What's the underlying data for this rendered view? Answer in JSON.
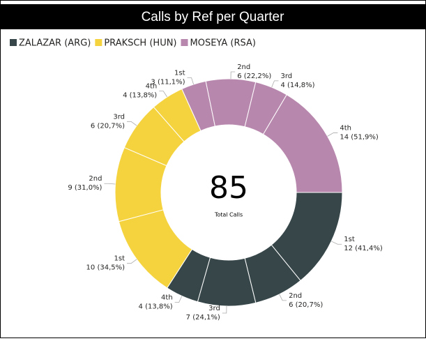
{
  "chart_data": {
    "type": "donut",
    "title": "Calls by Ref per Quarter",
    "total": 85,
    "total_label": "Total Calls",
    "series": [
      {
        "name": "ZALAZAR (ARG)",
        "color": "#374649",
        "categories": [
          "1st",
          "2nd",
          "3rd",
          "4th"
        ],
        "values": [
          12,
          6,
          7,
          4
        ],
        "value_labels": [
          "12 (41,4%)",
          "6 (20,7%)",
          "7 (24,1%)",
          "4 (13,8%)"
        ]
      },
      {
        "name": "PRAKSCH (HUN)",
        "color": "#F5D33F",
        "categories": [
          "1st",
          "2nd",
          "3rd",
          "4th"
        ],
        "values": [
          10,
          9,
          6,
          4
        ],
        "value_labels": [
          "10 (34,5%)",
          "9 (31,0%)",
          "6 (20,7%)",
          "4 (13,8%)"
        ]
      },
      {
        "name": "MOSEYA (RSA)",
        "color": "#B887AD",
        "categories": [
          "1st",
          "2nd",
          "3rd",
          "4th"
        ],
        "values": [
          3,
          6,
          4,
          14
        ],
        "value_labels": [
          "3 (11,1%)",
          "6 (22,2%)",
          "4 (14,8%)",
          "14 (51,9%)"
        ]
      }
    ],
    "legend": "top-left"
  }
}
